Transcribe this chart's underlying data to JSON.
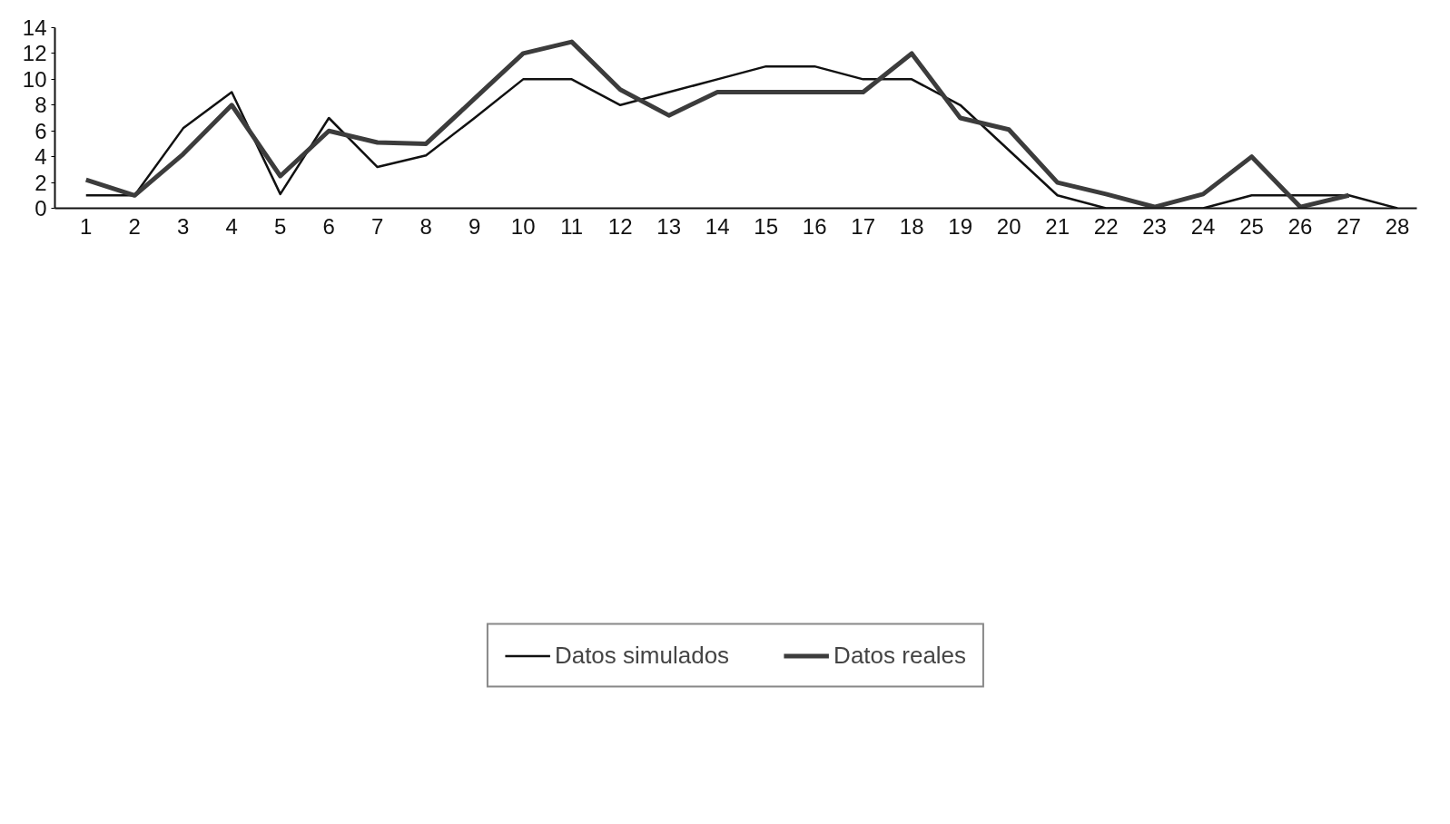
{
  "chart_data": {
    "type": "line",
    "x": [
      1,
      2,
      3,
      4,
      5,
      6,
      7,
      8,
      9,
      10,
      11,
      12,
      13,
      14,
      15,
      16,
      17,
      18,
      19,
      20,
      21,
      22,
      23,
      24,
      25,
      26,
      27,
      28
    ],
    "series": [
      {
        "name": "Datos simulados",
        "color": "#111111",
        "values": [
          1,
          1,
          6.2,
          9,
          1.1,
          7,
          3.2,
          4.1,
          7,
          10,
          10,
          8,
          9,
          10,
          11,
          11,
          10,
          10,
          8,
          4.5,
          1,
          0,
          0,
          0,
          1,
          1,
          1,
          0
        ]
      },
      {
        "name": "Datos reales",
        "color": "#3c3c3c",
        "values": [
          2.2,
          1,
          4.2,
          8,
          2.5,
          6,
          5.1,
          5,
          8.5,
          12,
          12.9,
          9.2,
          7.2,
          9,
          9,
          9,
          9,
          12,
          7,
          6.1,
          2,
          1.1,
          0.1,
          1.1,
          4,
          0.1,
          1,
          null
        ]
      }
    ],
    "xlim": [
      0.36,
      28.4
    ],
    "xticks": [
      1,
      2,
      3,
      4,
      5,
      6,
      7,
      8,
      9,
      10,
      11,
      12,
      13,
      14,
      15,
      16,
      17,
      18,
      19,
      20,
      21,
      22,
      23,
      24,
      25,
      26,
      27,
      28
    ],
    "ylim": [
      0,
      14
    ],
    "yticks": [
      0,
      2,
      4,
      6,
      8,
      10,
      12,
      14
    ],
    "grid": false,
    "legend": "bottom",
    "line_style": "solid",
    "marker": "none"
  }
}
